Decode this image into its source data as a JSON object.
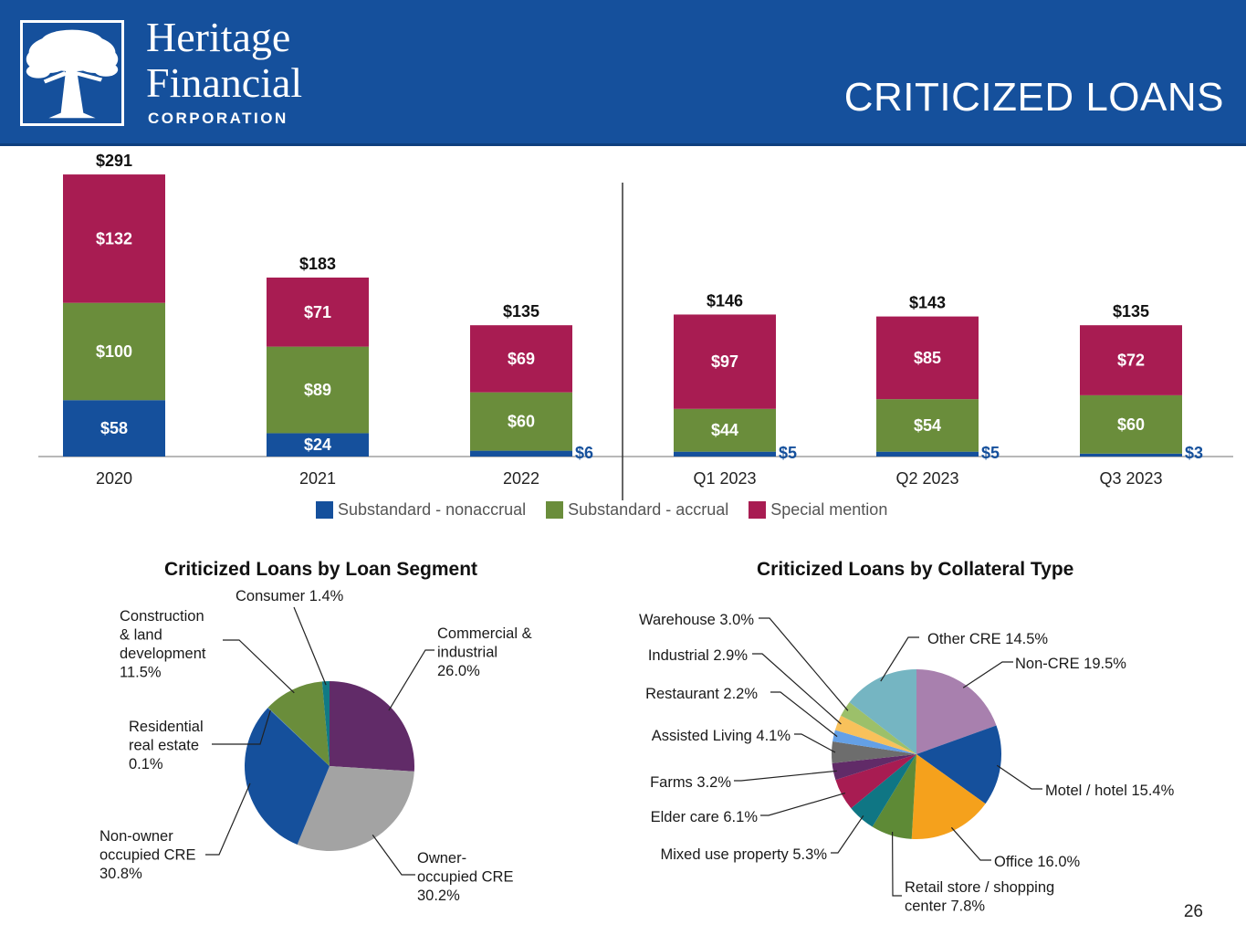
{
  "header": {
    "brand_line1": "Heritage",
    "brand_line2": "Financial",
    "brand_line3": "CORPORATION",
    "title": "CRITICIZED LOANS",
    "background_color": "#15509c"
  },
  "chart_data": [
    {
      "type": "bar",
      "stacked": true,
      "categories": [
        "2020",
        "2021",
        "2022",
        "Q1 2023",
        "Q2 2023",
        "Q3 2023"
      ],
      "series": [
        {
          "name": "Substandard - nonaccrual",
          "color": "#15509c",
          "values": [
            58,
            24,
            6,
            5,
            5,
            3
          ],
          "labels": [
            "$58",
            "$24",
            "$6",
            "$5",
            "$5",
            "$3"
          ]
        },
        {
          "name": "Substandard - accrual",
          "color": "#6a8d3b",
          "values": [
            100,
            89,
            60,
            44,
            54,
            60
          ],
          "labels": [
            "$100",
            "$89",
            "$60",
            "$44",
            "$54",
            "$60"
          ]
        },
        {
          "name": "Special mention",
          "color": "#a81c52",
          "values": [
            132,
            71,
            69,
            97,
            85,
            72
          ],
          "labels": [
            "$132",
            "$71",
            "$69",
            "$97",
            "$85",
            "$72"
          ]
        }
      ],
      "totals": [
        "$291",
        "$183",
        "$135",
        "$146",
        "$143",
        "$135"
      ],
      "ylim": [
        0,
        291
      ],
      "divider_after_category": "2022",
      "legend_position": "bottom"
    },
    {
      "type": "pie",
      "title": "Criticized Loans by Loan Segment",
      "slices": [
        {
          "name": "Commercial & industrial",
          "value": 26.0,
          "color": "#612b68",
          "label_lines": [
            "Commercial &",
            "industrial",
            "26.0%"
          ]
        },
        {
          "name": "Owner-occupied CRE",
          "value": 30.2,
          "color": "#a3a3a3",
          "label_lines": [
            "Owner-",
            "occupied CRE",
            "30.2%"
          ]
        },
        {
          "name": "Non-owner occupied CRE",
          "value": 30.8,
          "color": "#15509c",
          "label_lines": [
            "Non-owner",
            "occupied CRE",
            "30.8%"
          ]
        },
        {
          "name": "Residential real estate",
          "value": 0.1,
          "color": "#3a79c4",
          "label_lines": [
            "Residential",
            "real estate",
            "0.1%"
          ]
        },
        {
          "name": "Construction & land development",
          "value": 11.5,
          "color": "#6a8d3b",
          "label_lines": [
            "Construction",
            "& land",
            "development",
            "11.5%"
          ]
        },
        {
          "name": "Consumer",
          "value": 1.4,
          "color": "#117a85",
          "label_lines": [
            "Consumer 1.4%"
          ]
        }
      ]
    },
    {
      "type": "pie",
      "title": "Criticized Loans by Collateral Type",
      "slices": [
        {
          "name": "Non-CRE",
          "value": 19.5,
          "color": "#a880ae",
          "label_lines": [
            "Non-CRE 19.5%"
          ]
        },
        {
          "name": "Motel / hotel",
          "value": 15.4,
          "color": "#15509c",
          "label_lines": [
            "Motel / hotel 15.4%"
          ]
        },
        {
          "name": "Office",
          "value": 16.0,
          "color": "#f5a11c",
          "label_lines": [
            "Office 16.0%"
          ]
        },
        {
          "name": "Retail store / shopping center",
          "value": 7.8,
          "color": "#5e8a36",
          "label_lines": [
            "Retail store / shopping",
            "center 7.8%"
          ]
        },
        {
          "name": "Mixed use property",
          "value": 5.3,
          "color": "#0f7684",
          "label_lines": [
            "Mixed use property 5.3%"
          ]
        },
        {
          "name": "Elder care",
          "value": 6.1,
          "color": "#a81c52",
          "label_lines": [
            "Elder care 6.1%"
          ]
        },
        {
          "name": "Farms",
          "value": 3.2,
          "color": "#612b68",
          "label_lines": [
            "Farms 3.2%"
          ]
        },
        {
          "name": "Assisted Living",
          "value": 4.1,
          "color": "#6d6d6d",
          "label_lines": [
            "Assisted Living 4.1%"
          ]
        },
        {
          "name": "Restaurant",
          "value": 2.2,
          "color": "#64a0e6",
          "label_lines": [
            "Restaurant 2.2%"
          ]
        },
        {
          "name": "Industrial",
          "value": 2.9,
          "color": "#f8c15b",
          "label_lines": [
            "Industrial 2.9%"
          ]
        },
        {
          "name": "Warehouse",
          "value": 3.0,
          "color": "#9cc06a",
          "label_lines": [
            "Warehouse 3.0%"
          ]
        },
        {
          "name": "Other CRE",
          "value": 14.5,
          "color": "#75b5c2",
          "label_lines": [
            "Other CRE 14.5%"
          ]
        }
      ]
    }
  ],
  "footer": {
    "page_number": "26"
  }
}
